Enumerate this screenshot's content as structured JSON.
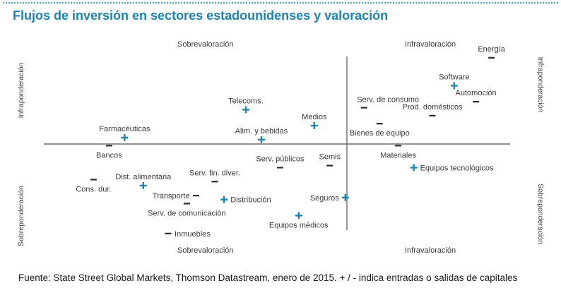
{
  "title": "Flujos de inversión en sectores estadounidenses y valoración",
  "colors": {
    "title": "#1d83b1",
    "plus": "#1d83b1",
    "minus": "#2a2a2a",
    "axis": "#555555",
    "text": "#3a3a3a"
  },
  "quadrant_labels": {
    "top_left": "Sobrevaloración",
    "top_right": "Infravaloración",
    "bottom_left": "Sobrevaloración",
    "bottom_right": "Infravaloración"
  },
  "side_labels": {
    "left_top": "Infraponderación",
    "left_bottom": "Sobreponderación",
    "right_top": "Infraponderación",
    "right_bottom": "Sobreponderación"
  },
  "footnote": "Fuente: State Street Global Markets, Thomson Datastream, enero de 2015. + / - indica entradas o salidas de capitales",
  "chart_data": {
    "type": "scatter",
    "title": "Flujos de inversión en sectores estadounidenses y valoración",
    "xlabel": "Sobrevaloración ← → Infravaloración",
    "ylabel": "Sobreponderación ← → Infraponderación",
    "xlim": [
      -10,
      5
    ],
    "ylim": [
      -5,
      5
    ],
    "grid": false,
    "legend": "+ entradas de capitales / - salidas de capitales",
    "points": [
      {
        "name": "Energía",
        "x": 4.4,
        "y": 4.3,
        "flow": "-",
        "label_pos": "above"
      },
      {
        "name": "Software",
        "x": 3.2,
        "y": 2.9,
        "flow": "+",
        "label_pos": "above"
      },
      {
        "name": "Automoción",
        "x": 3.9,
        "y": 2.1,
        "flow": "-",
        "label_pos": "above"
      },
      {
        "name": "Serv. de consumo",
        "x": 0.3,
        "y": 1.8,
        "flow": "-",
        "label_pos": "above-right"
      },
      {
        "name": "Prod. domésticos",
        "x": 2.5,
        "y": 1.4,
        "flow": "-",
        "label_pos": "above"
      },
      {
        "name": "Bienes de equipo",
        "x": 0.8,
        "y": 1.0,
        "flow": "-",
        "label_pos": "below"
      },
      {
        "name": "Materiales",
        "x": 1.4,
        "y": -0.1,
        "flow": "-",
        "label_pos": "below"
      },
      {
        "name": "Equipos tecnológicos",
        "x": 1.9,
        "y": -1.2,
        "flow": "+",
        "label_pos": "right"
      },
      {
        "name": "Telecoms.",
        "x": -3.5,
        "y": 1.7,
        "flow": "+",
        "label_pos": "above"
      },
      {
        "name": "Medios",
        "x": -1.3,
        "y": 0.9,
        "flow": "+",
        "label_pos": "above"
      },
      {
        "name": "Alim. y bebidas",
        "x": -3.0,
        "y": 0.2,
        "flow": "+",
        "label_pos": "above"
      },
      {
        "name": "Farmacéuticas",
        "x": -7.4,
        "y": 0.3,
        "flow": "+",
        "label_pos": "above"
      },
      {
        "name": "Bancos",
        "x": -7.9,
        "y": -0.1,
        "flow": "-",
        "label_pos": "below"
      },
      {
        "name": "Serv. públicos",
        "x": -2.4,
        "y": -1.2,
        "flow": "-",
        "label_pos": "above"
      },
      {
        "name": "Semis",
        "x": -0.8,
        "y": -1.1,
        "flow": "-",
        "label_pos": "above"
      },
      {
        "name": "Cons. dur.",
        "x": -8.4,
        "y": -1.8,
        "flow": "-",
        "label_pos": "below"
      },
      {
        "name": "Dist. alimentaria",
        "x": -6.8,
        "y": -2.1,
        "flow": "+",
        "label_pos": "above"
      },
      {
        "name": "Serv. fin. diver.",
        "x": -4.5,
        "y": -1.9,
        "flow": "-",
        "label_pos": "above"
      },
      {
        "name": "Transporte",
        "x": -5.1,
        "y": -2.6,
        "flow": "-",
        "label_pos": "left"
      },
      {
        "name": "Distribución",
        "x": -4.2,
        "y": -2.8,
        "flow": "+",
        "label_pos": "right"
      },
      {
        "name": "Serv. de comunicación",
        "x": -5.4,
        "y": -3.0,
        "flow": "-",
        "label_pos": "below"
      },
      {
        "name": "Seguros",
        "x": -0.3,
        "y": -2.7,
        "flow": "+",
        "label_pos": "left"
      },
      {
        "name": "Equipos médicos",
        "x": -1.8,
        "y": -3.6,
        "flow": "+",
        "label_pos": "below"
      },
      {
        "name": "Inmuebles",
        "x": -6.0,
        "y": -4.5,
        "flow": "-",
        "label_pos": "right"
      }
    ]
  }
}
